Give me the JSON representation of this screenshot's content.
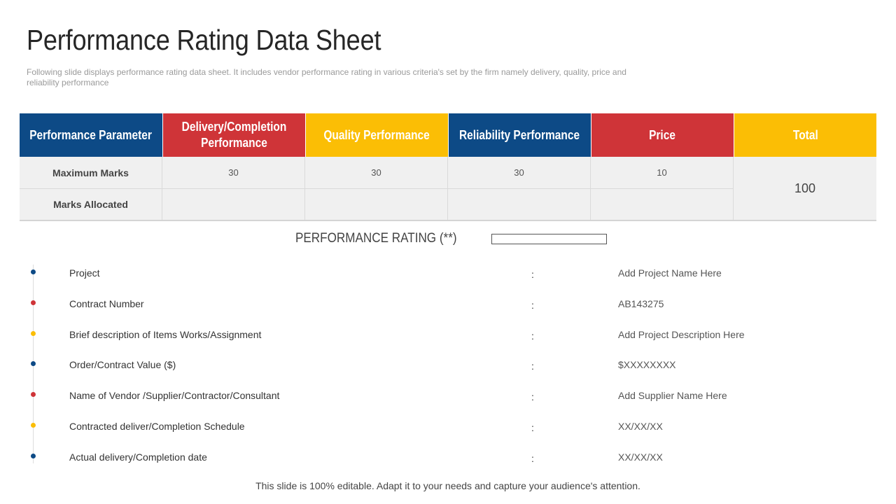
{
  "title": "Performance Rating Data Sheet",
  "subtitle": "Following slide displays performance rating data sheet. It includes vendor performance rating in various criteria's set by the firm namely delivery, quality, price and reliability performance",
  "colors": {
    "blue": "#0d4a86",
    "red": "#cf3438",
    "yellow": "#fbbe05"
  },
  "table": {
    "headers": [
      {
        "label": "Performance Parameter",
        "color": "#0d4a86"
      },
      {
        "label": "Delivery/Completion Performance",
        "color": "#cf3438"
      },
      {
        "label": "Quality Performance",
        "color": "#fbbe05"
      },
      {
        "label": "Reliability Performance",
        "color": "#0d4a86"
      },
      {
        "label": "Price",
        "color": "#cf3438"
      },
      {
        "label": "Total",
        "color": "#fbbe05"
      }
    ],
    "rows": [
      {
        "label": "Maximum Marks",
        "values": [
          "30",
          "30",
          "30",
          "10"
        ]
      },
      {
        "label": "Marks Allocated",
        "values": [
          "",
          "",
          "",
          ""
        ]
      }
    ],
    "total": "100"
  },
  "rating": {
    "label": "PERFORMANCE RATING (**)",
    "value": ""
  },
  "details": [
    {
      "label": "Project",
      "colon": ":",
      "value": "Add Project Name  Here",
      "dot": "#0d4a86"
    },
    {
      "label": "Contract Number",
      "colon": ":",
      "value": "AB143275",
      "dot": "#cf3438"
    },
    {
      "label": "Brief description of Items Works/Assignment",
      "colon": ":",
      "value": "Add Project Description Here",
      "dot": "#fbbe05"
    },
    {
      "label": "Order/Contract Value ($)",
      "colon": ":",
      "value": "$XXXXXXXX",
      "dot": "#0d4a86"
    },
    {
      "label": "Name of Vendor /Supplier/Contractor/Consultant",
      "colon": ":",
      "value": "Add Supplier Name  Here",
      "dot": "#cf3438"
    },
    {
      "label": "Contracted deliver/Completion Schedule",
      "colon": ":",
      "value": "XX/XX/XX",
      "dot": "#fbbe05"
    },
    {
      "label": "Actual delivery/Completion date",
      "colon": ":",
      "value": "XX/XX/XX",
      "dot": "#0d4a86"
    }
  ],
  "footer": "This slide is 100% editable. Adapt it to your needs and capture your audience's attention."
}
